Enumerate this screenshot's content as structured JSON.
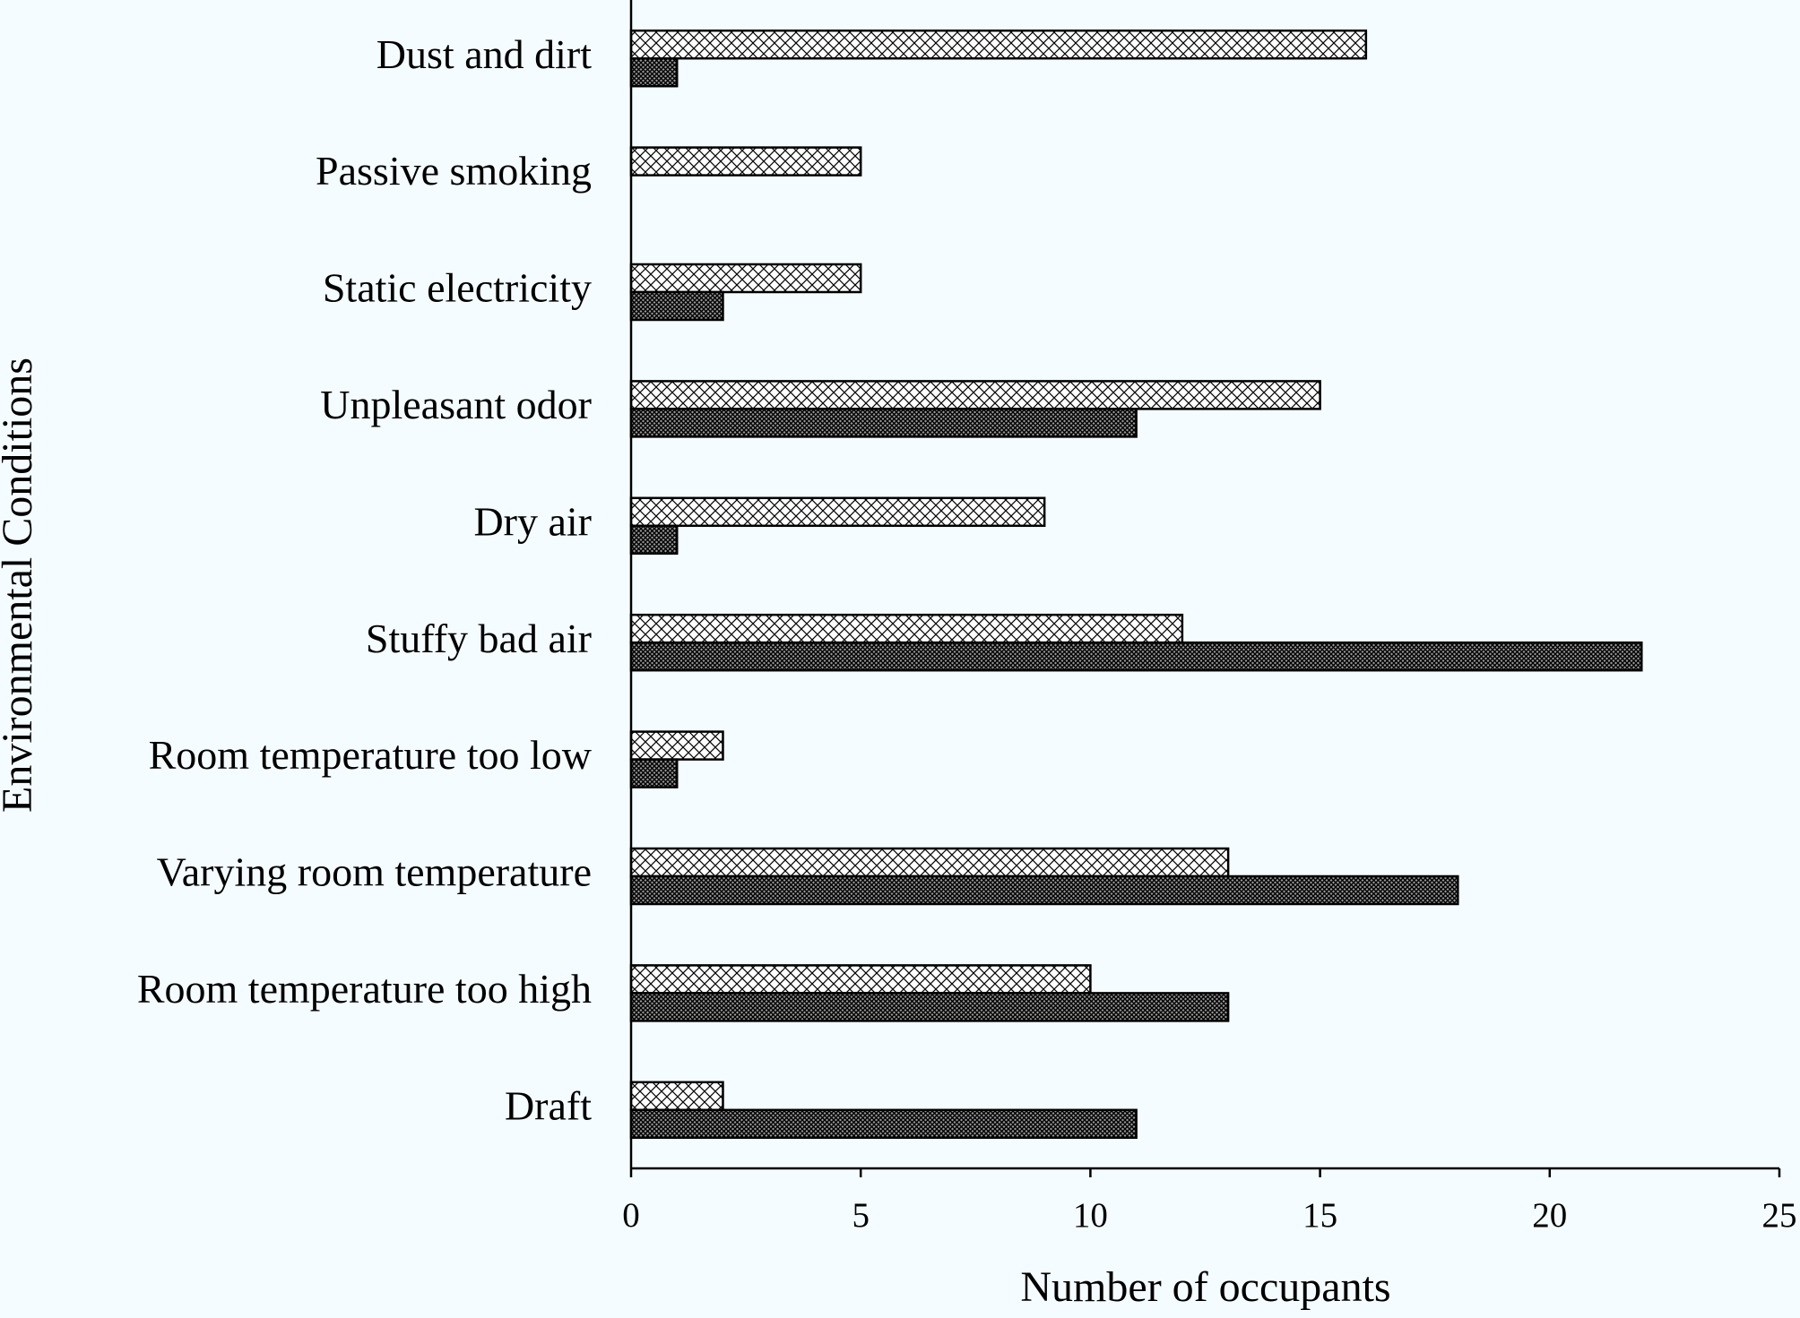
{
  "chart_data": {
    "type": "hbar",
    "x_label": "Number of occupants",
    "y_label": "Environmental Conditions",
    "categories": [
      "Dust and dirt",
      "Passive smoking",
      "Static electricity",
      "Unpleasant odor",
      "Dry air",
      "Stuffy bad air",
      "Room temperature too low",
      "Varying room temperature",
      "Room temperature too high",
      "Draft"
    ],
    "series": [
      {
        "color": "#ffffff",
        "values": [
          16,
          5,
          5,
          15,
          9,
          12,
          2,
          13,
          10,
          2
        ]
      },
      {
        "color": "#9a9a9a",
        "values": [
          1,
          0,
          2,
          11,
          1,
          22,
          1,
          18,
          13,
          11
        ]
      }
    ],
    "xlim": [
      0,
      25
    ],
    "xticks": [
      0,
      5,
      10,
      15,
      20,
      25
    ]
  }
}
